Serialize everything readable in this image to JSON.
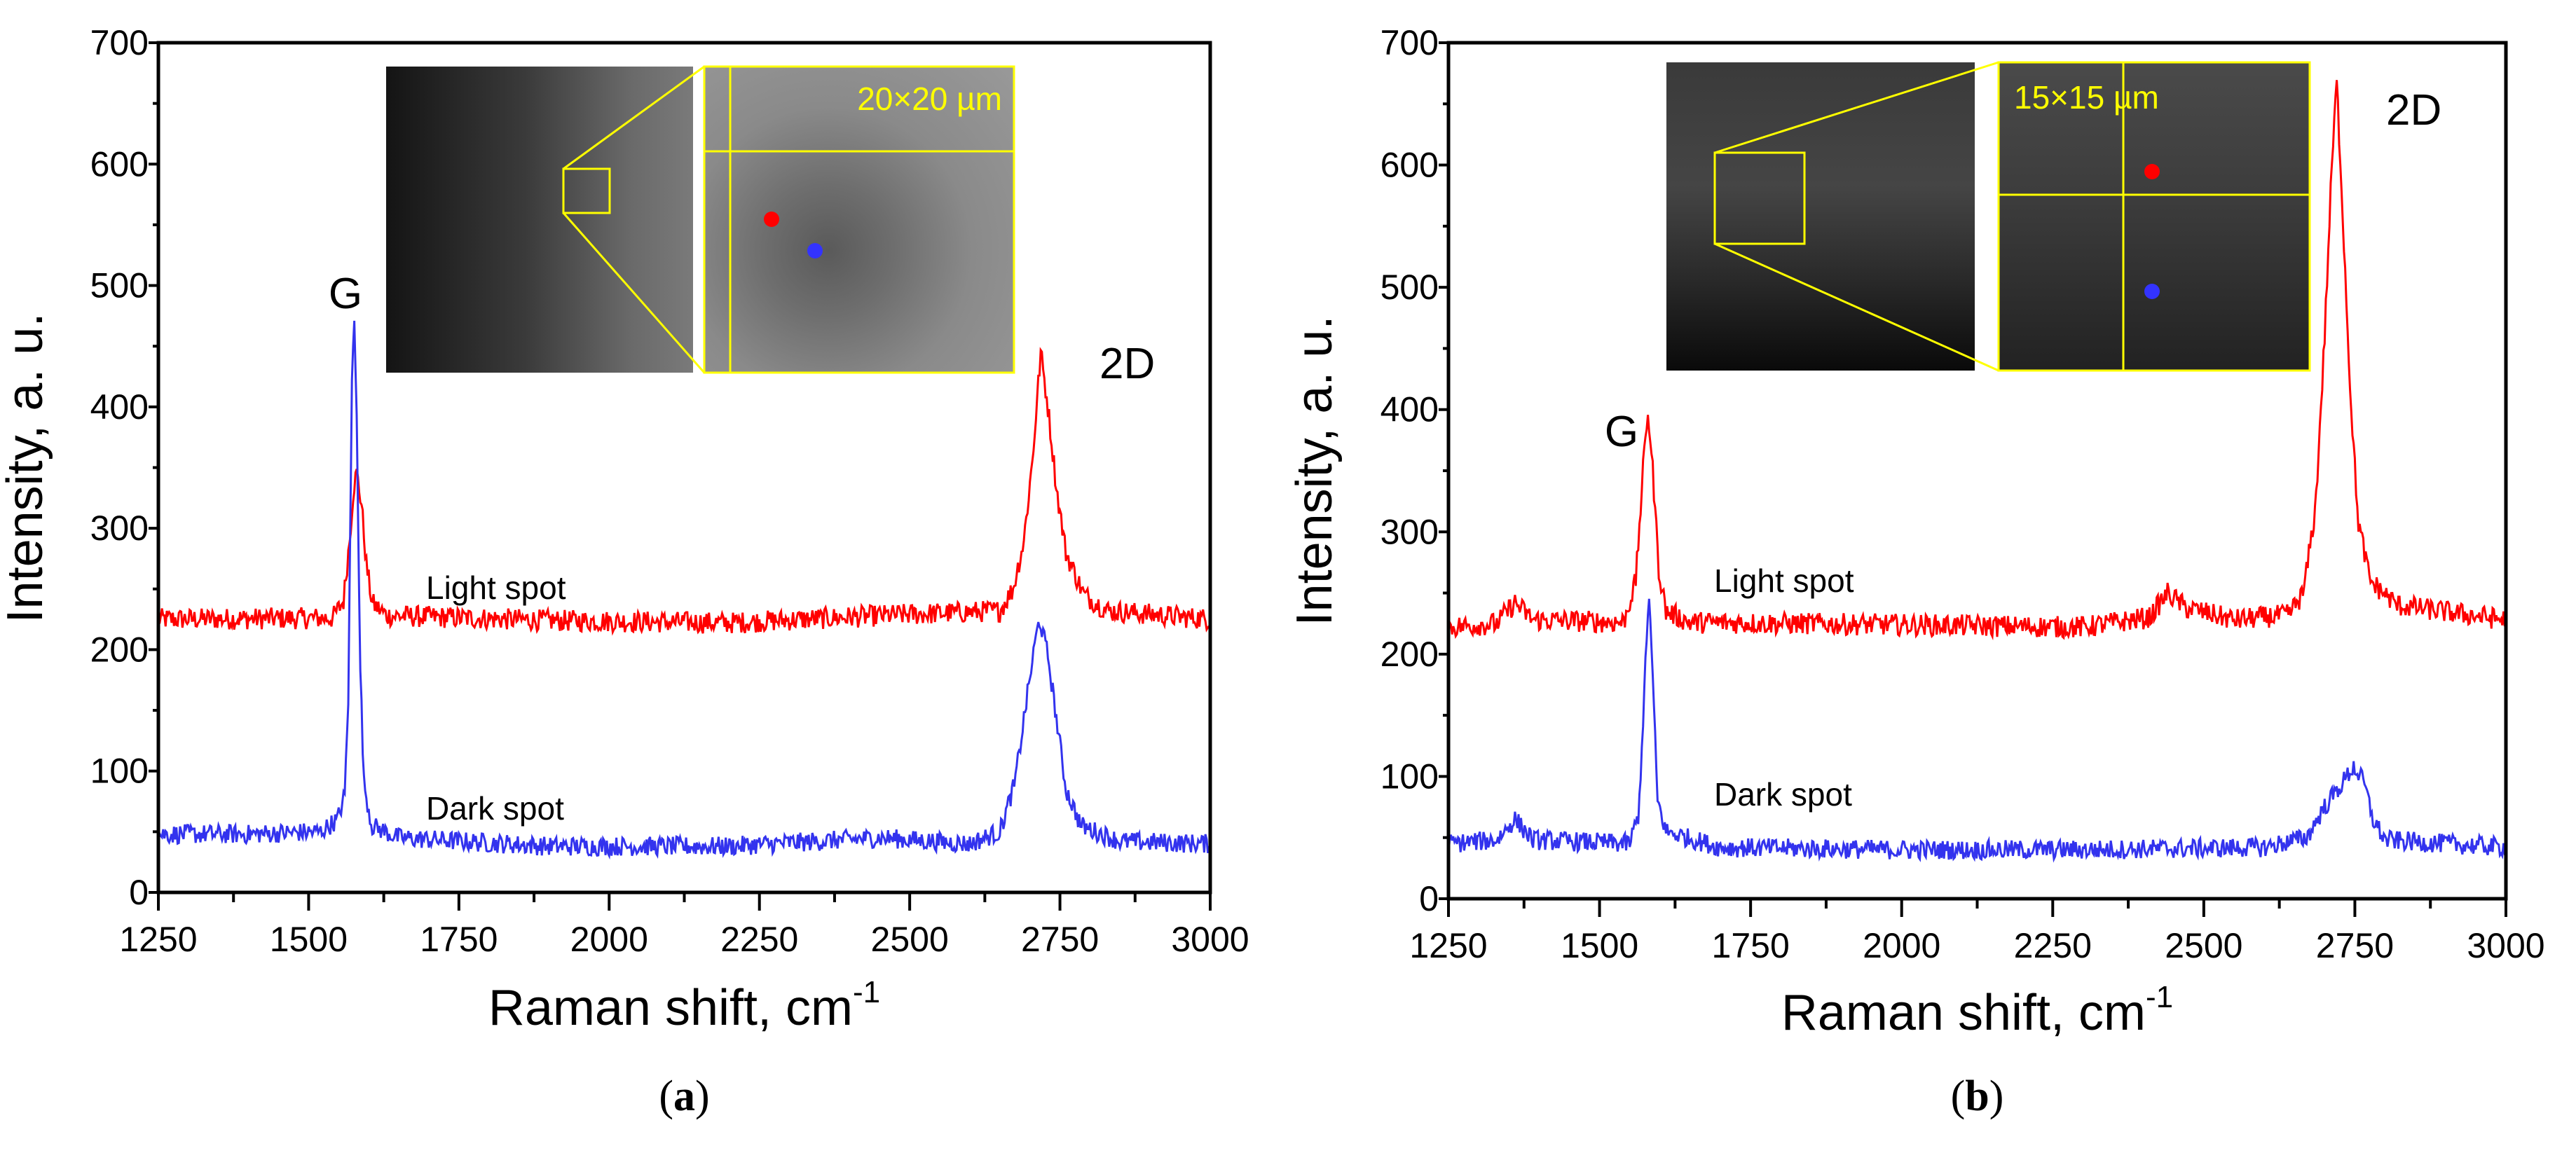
{
  "chart_data": [
    {
      "panel": "(a)",
      "panel_letter": "a",
      "type": "line",
      "xlabel": "Raman shift, cm",
      "xlabel_sup": "-1",
      "ylabel": "Intensity, a. u.",
      "xlim": [
        1250,
        3000
      ],
      "ylim": [
        0,
        700
      ],
      "xticks": [
        "1250",
        "1500",
        "1750",
        "2000",
        "2250",
        "2500",
        "2750",
        "3000"
      ],
      "yticks": [
        "0",
        "100",
        "200",
        "300",
        "400",
        "500",
        "600",
        "700"
      ],
      "grid": false,
      "annotations": {
        "g": "G",
        "twod": "2D",
        "light": "Light spot",
        "dark": "Dark spot"
      },
      "inset": {
        "scale_label": "20×20 µm"
      },
      "series": [
        {
          "name": "Light spot",
          "color": "#ff0000",
          "noise": 9,
          "points": [
            [
              1250,
              225
            ],
            [
              1540,
              226
            ],
            [
              1558,
              240
            ],
            [
              1568,
              290
            ],
            [
              1575,
              335
            ],
            [
              1580,
              345
            ],
            [
              1588,
              320
            ],
            [
              1596,
              270
            ],
            [
              1606,
              238
            ],
            [
              1630,
              228
            ],
            [
              1900,
              224
            ],
            [
              2200,
              222
            ],
            [
              2450,
              228
            ],
            [
              2650,
              232
            ],
            [
              2672,
              250
            ],
            [
              2690,
              290
            ],
            [
              2705,
              360
            ],
            [
              2718,
              445
            ],
            [
              2730,
              400
            ],
            [
              2745,
              330
            ],
            [
              2760,
              280
            ],
            [
              2790,
              245
            ],
            [
              2830,
              232
            ],
            [
              3000,
              225
            ]
          ]
        },
        {
          "name": "Dark spot",
          "color": "#3333ee",
          "noise": 8,
          "points": [
            [
              1250,
              48
            ],
            [
              1400,
              48
            ],
            [
              1520,
              50
            ],
            [
              1548,
              60
            ],
            [
              1560,
              80
            ],
            [
              1566,
              160
            ],
            [
              1572,
              420
            ],
            [
              1576,
              475
            ],
            [
              1580,
              400
            ],
            [
              1585,
              200
            ],
            [
              1592,
              90
            ],
            [
              1605,
              55
            ],
            [
              1650,
              45
            ],
            [
              1900,
              38
            ],
            [
              2200,
              38
            ],
            [
              2450,
              45
            ],
            [
              2600,
              40
            ],
            [
              2650,
              50
            ],
            [
              2675,
              90
            ],
            [
              2695,
              160
            ],
            [
              2710,
              210
            ],
            [
              2716,
              225
            ],
            [
              2730,
              195
            ],
            [
              2745,
              140
            ],
            [
              2760,
              85
            ],
            [
              2785,
              55
            ],
            [
              2850,
              42
            ],
            [
              3000,
              40
            ]
          ]
        }
      ]
    },
    {
      "panel": "(b)",
      "panel_letter": "b",
      "type": "line",
      "xlabel": "Raman shift, cm",
      "xlabel_sup": "-1",
      "ylabel": "Intensity, a. u.",
      "xlim": [
        1250,
        3000
      ],
      "ylim": [
        0,
        700
      ],
      "xticks": [
        "1250",
        "1500",
        "1750",
        "2000",
        "2250",
        "2500",
        "2750",
        "3000"
      ],
      "yticks": [
        "0",
        "100",
        "200",
        "300",
        "400",
        "500",
        "600",
        "700"
      ],
      "grid": false,
      "annotations": {
        "g": "G",
        "twod": "2D",
        "light": "Light spot",
        "dark": "Dark spot"
      },
      "inset": {
        "scale_label": "15×15 µm"
      },
      "series": [
        {
          "name": "Light spot",
          "color": "#ff0000",
          "noise": 9,
          "points": [
            [
              1250,
              222
            ],
            [
              1330,
              225
            ],
            [
              1360,
              242
            ],
            [
              1390,
              228
            ],
            [
              1540,
              226
            ],
            [
              1560,
              260
            ],
            [
              1572,
              350
            ],
            [
              1580,
              400
            ],
            [
              1588,
              350
            ],
            [
              1598,
              270
            ],
            [
              1610,
              235
            ],
            [
              1650,
              226
            ],
            [
              2000,
              224
            ],
            [
              2300,
              222
            ],
            [
              2410,
              230
            ],
            [
              2440,
              250
            ],
            [
              2470,
              238
            ],
            [
              2550,
              228
            ],
            [
              2640,
              232
            ],
            [
              2665,
              250
            ],
            [
              2685,
              320
            ],
            [
              2700,
              460
            ],
            [
              2712,
              600
            ],
            [
              2720,
              668
            ],
            [
              2730,
              560
            ],
            [
              2742,
              420
            ],
            [
              2755,
              310
            ],
            [
              2775,
              260
            ],
            [
              2820,
              240
            ],
            [
              3000,
              228
            ]
          ]
        },
        {
          "name": "Dark spot",
          "color": "#3333ee",
          "noise": 8,
          "points": [
            [
              1250,
              45
            ],
            [
              1330,
              48
            ],
            [
              1360,
              65
            ],
            [
              1390,
              48
            ],
            [
              1550,
              45
            ],
            [
              1565,
              70
            ],
            [
              1575,
              180
            ],
            [
              1582,
              250
            ],
            [
              1588,
              180
            ],
            [
              1596,
              80
            ],
            [
              1610,
              55
            ],
            [
              1700,
              42
            ],
            [
              2000,
              40
            ],
            [
              2300,
              40
            ],
            [
              2600,
              42
            ],
            [
              2670,
              50
            ],
            [
              2700,
              75
            ],
            [
              2730,
              95
            ],
            [
              2748,
              108
            ],
            [
              2765,
              95
            ],
            [
              2780,
              65
            ],
            [
              2800,
              48
            ],
            [
              3000,
              42
            ]
          ]
        }
      ]
    }
  ]
}
